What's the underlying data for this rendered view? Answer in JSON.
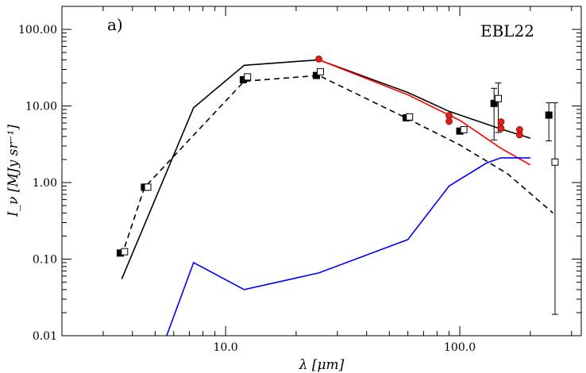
{
  "chart_data": {
    "type": "line",
    "panel_label": "a)",
    "object_label": "EBL22",
    "xlabel": "λ [μm]",
    "ylabel": "I_ν [MJy sr⁻¹]",
    "xscale": "log",
    "yscale": "log",
    "xlim": [
      2.0,
      330
    ],
    "ylim": [
      0.01,
      200
    ],
    "x_ticks": [
      {
        "value": 10,
        "label": "10.0"
      },
      {
        "value": 100,
        "label": "100.0"
      }
    ],
    "y_ticks": [
      {
        "value": 0.01,
        "label": "0.01"
      },
      {
        "value": 0.1,
        "label": "0.10"
      },
      {
        "value": 1,
        "label": "1.00"
      },
      {
        "value": 10,
        "label": "10.00"
      },
      {
        "value": 100,
        "label": "100.00"
      }
    ],
    "series": [
      {
        "name": "total model",
        "style": "solid",
        "color": "#000000",
        "x": [
          3.6,
          7.3,
          12,
          25,
          60,
          90,
          150,
          200
        ],
        "y": [
          0.055,
          9.5,
          34,
          40,
          15,
          8.5,
          5.0,
          3.8
        ]
      },
      {
        "name": "dashed component",
        "style": "dashed",
        "color": "#000000",
        "x": [
          3.6,
          4.5,
          12,
          25,
          60,
          100,
          160,
          250
        ],
        "y": [
          0.11,
          0.86,
          21,
          25,
          6.8,
          3.1,
          1.3,
          0.4
        ]
      },
      {
        "name": "red model",
        "style": "solid",
        "color": "#ff0000",
        "x": [
          25,
          60,
          100,
          150,
          200
        ],
        "y": [
          40,
          14,
          6.5,
          2.8,
          1.7
        ]
      },
      {
        "name": "blue component",
        "style": "solid",
        "color": "#0000ff",
        "x": [
          5.6,
          7.3,
          12,
          25,
          60,
          90,
          130,
          150,
          200
        ],
        "y": [
          0.01,
          0.09,
          0.04,
          0.066,
          0.18,
          0.9,
          1.8,
          2.1,
          2.1
        ]
      }
    ],
    "points": [
      {
        "name": "filled squares",
        "marker": "filled-square",
        "color": "#000000",
        "x": [
          3.55,
          4.5,
          11.9,
          24.4,
          59,
          100,
          140,
          240
        ],
        "y": [
          0.12,
          0.87,
          22,
          25,
          7.0,
          4.7,
          10.8,
          7.6
        ]
      },
      {
        "name": "open squares",
        "marker": "open-square",
        "color": "#000000",
        "x": [
          3.7,
          4.65,
          12.4,
          25.4,
          61,
          104,
          146,
          255
        ],
        "y": [
          0.125,
          0.87,
          24,
          28,
          7.2,
          4.9,
          12.5,
          1.85
        ]
      },
      {
        "name": "red circles",
        "marker": "filled-circle",
        "color": "#e0201b",
        "x": [
          25,
          90,
          90,
          150,
          150,
          180,
          180
        ],
        "y": [
          41,
          7.5,
          6.3,
          6.2,
          5.1,
          4.9,
          4.2
        ]
      }
    ],
    "error_bars": [
      {
        "x": 140,
        "low": 3.6,
        "high": 17
      },
      {
        "x": 146,
        "low": 4.5,
        "high": 20
      },
      {
        "x": 240,
        "low": 3.5,
        "high": 11
      },
      {
        "x": 255,
        "low": 0.019,
        "high": 11
      }
    ]
  }
}
